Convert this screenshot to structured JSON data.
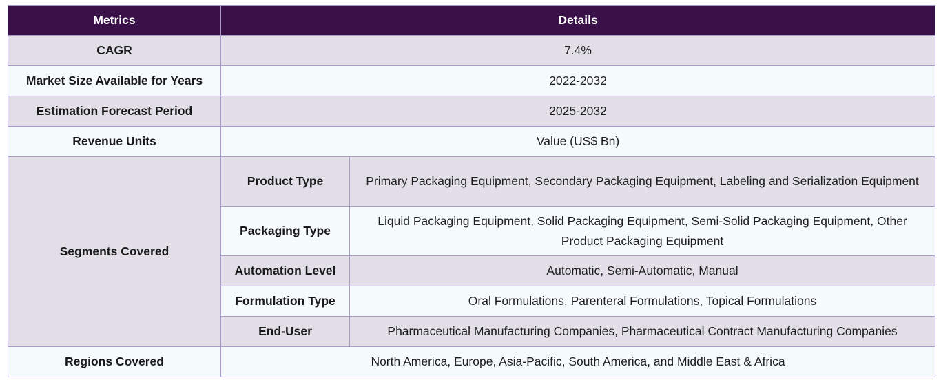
{
  "table": {
    "headers": [
      "Metrics",
      "Details"
    ],
    "rows": {
      "cagr": {
        "label": "CAGR",
        "value": "7.4%"
      },
      "market_size": {
        "label": "Market Size Available for Years",
        "value": "2022-2032"
      },
      "forecast": {
        "label": "Estimation Forecast Period",
        "value": "2025-2032"
      },
      "revenue_units": {
        "label": "Revenue Units",
        "value": "Value (US$ Bn)"
      },
      "segments": {
        "label": "Segments Covered",
        "items": [
          {
            "label": "Product Type",
            "value": "Primary Packaging Equipment, Secondary Packaging Equipment, Labeling and Serialization Equipment"
          },
          {
            "label": "Packaging Type",
            "value": "Liquid Packaging Equipment, Solid Packaging Equipment, Semi-Solid Packaging Equipment, Other Product Packaging Equipment"
          },
          {
            "label": "Automation Level",
            "value": "Automatic, Semi-Automatic, Manual"
          },
          {
            "label": "Formulation Type",
            "value": "Oral Formulations, Parenteral Formulations, Topical Formulations"
          },
          {
            "label": "End-User",
            "value": "Pharmaceutical Manufacturing Companies, Pharmaceutical Contract Manufacturing Companies"
          }
        ]
      },
      "regions": {
        "label": "Regions Covered",
        "value": "North America, Europe, Asia-Pacific, South America, and Middle East & Africa"
      }
    }
  },
  "colors": {
    "header_bg": "#3a1048",
    "border": "#a99bc6",
    "shaded_row": "#e2dfe9",
    "light_row": "#f5fafc"
  }
}
